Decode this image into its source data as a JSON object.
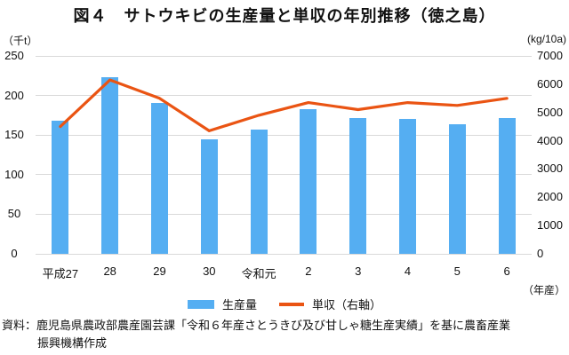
{
  "title": "図４　サトウキビの生産量と単収の年別推移（徳之島）",
  "left_axis_unit": "（千t）",
  "right_axis_unit": "(kg/10a)",
  "x_axis_unit": "（年産）",
  "legend": {
    "bar_label": "生産量",
    "line_label": "単収（右軸）"
  },
  "source": {
    "line1": "資料：鹿児島県農政部農産園芸課「令和６年産さとうきび及び甘しゃ糖生産実績」を基に農畜産業",
    "line2": "振興機構作成"
  },
  "colors": {
    "bar": "#55aef2",
    "line": "#ea5413",
    "grid": "#d9d9d9",
    "text": "#111111"
  },
  "chart_data": {
    "type": "bar",
    "subtype": "bar+line combo, dual axis",
    "title": "図４　サトウキビの生産量と単収の年別推移（徳之島）",
    "categories": [
      "平成27",
      "28",
      "29",
      "30",
      "令和元",
      "2",
      "3",
      "4",
      "5",
      "6"
    ],
    "series": [
      {
        "name": "生産量",
        "type": "bar",
        "axis": "left",
        "unit": "千t",
        "values": [
          168,
          223,
          191,
          145,
          157,
          183,
          171,
          170,
          164,
          172
        ]
      },
      {
        "name": "単収（右軸）",
        "type": "line",
        "axis": "right",
        "unit": "kg/10a",
        "values": [
          4500,
          6150,
          5500,
          4350,
          4900,
          5350,
          5100,
          5350,
          5250,
          5500
        ]
      }
    ],
    "left_axis": {
      "label": "（千t）",
      "min": 0,
      "max": 250,
      "step": 50,
      "ticks": [
        0,
        50,
        100,
        150,
        200,
        250
      ]
    },
    "right_axis": {
      "label": "(kg/10a)",
      "min": 0,
      "max": 7000,
      "step": 1000,
      "ticks": [
        0,
        1000,
        2000,
        3000,
        4000,
        5000,
        6000,
        7000
      ]
    },
    "xlabel": "（年産）",
    "grid": true,
    "legend_position": "bottom-center"
  }
}
